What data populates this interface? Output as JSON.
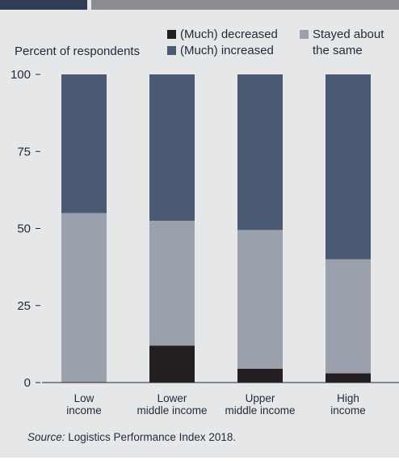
{
  "chart_data": {
    "type": "bar",
    "stacked": true,
    "ylabel": "Percent of respondents",
    "ylim": [
      0,
      100
    ],
    "yticks": [
      0,
      25,
      50,
      75,
      100
    ],
    "grid": false,
    "legend_position": "top",
    "categories": [
      [
        "Low",
        "income"
      ],
      [
        "Lower",
        "middle income"
      ],
      [
        "Upper",
        "middle income"
      ],
      [
        "High",
        "income"
      ]
    ],
    "series": [
      {
        "name": "(Much) decreased",
        "color": "#231f20",
        "values": [
          0,
          12,
          4.5,
          3
        ]
      },
      {
        "name": "Stayed about the same",
        "color": "#9aa1ad",
        "values": [
          55,
          40.5,
          45,
          37
        ]
      },
      {
        "name": "(Much) increased",
        "color": "#4b5a73",
        "values": [
          45,
          47.5,
          50.5,
          60
        ]
      }
    ],
    "legend": [
      {
        "label_lines": [
          "(Much) decreased"
        ],
        "series": 0
      },
      {
        "label_lines": [
          "(Much) increased"
        ],
        "series": 2
      },
      {
        "label_lines": [
          "Stayed about",
          "the same"
        ],
        "series": 1
      }
    ]
  },
  "source": {
    "label": "Source:",
    "text": " Logistics Performance Index 2018."
  }
}
